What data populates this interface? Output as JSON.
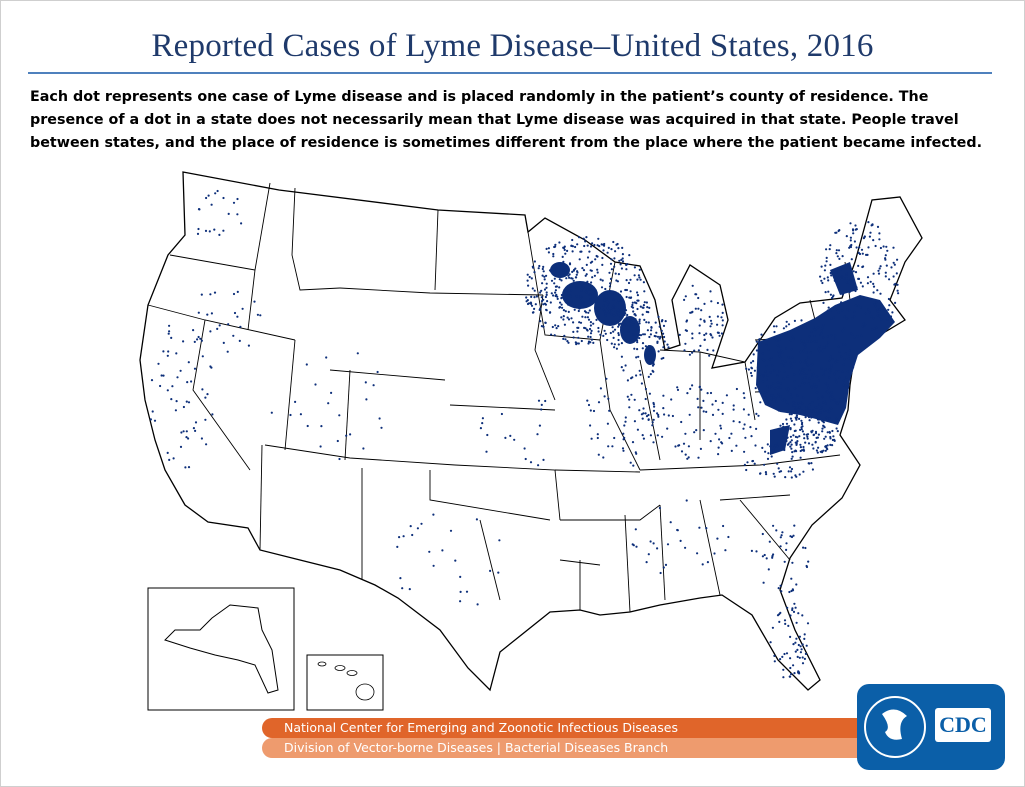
{
  "header": {
    "title": "Reported Cases of Lyme Disease–United States, 2016",
    "caption": "Each dot represents one case of Lyme disease and is placed randomly in the patient’s county of residence. The presence of a dot in a state does not necessarily mean that Lyme disease was acquired in that state. People travel between states, and the place of residence is sometimes different from the place where the patient became infected."
  },
  "map": {
    "dot_color": "#0d2f7a",
    "insets": [
      "alaska",
      "hawaii"
    ]
  },
  "footer": {
    "center_line": "National Center for Emerging and Zoonotic Infectious Diseases",
    "division_line": "Division of Vector-borne Diseases | Bacterial Diseases Branch",
    "logo_text": "CDC",
    "colors": {
      "banner_top": "#e0652a",
      "banner_bottom": "#ee9b6e",
      "logo_bg": "#0b5fa8",
      "title": "#1f3a6b"
    }
  }
}
